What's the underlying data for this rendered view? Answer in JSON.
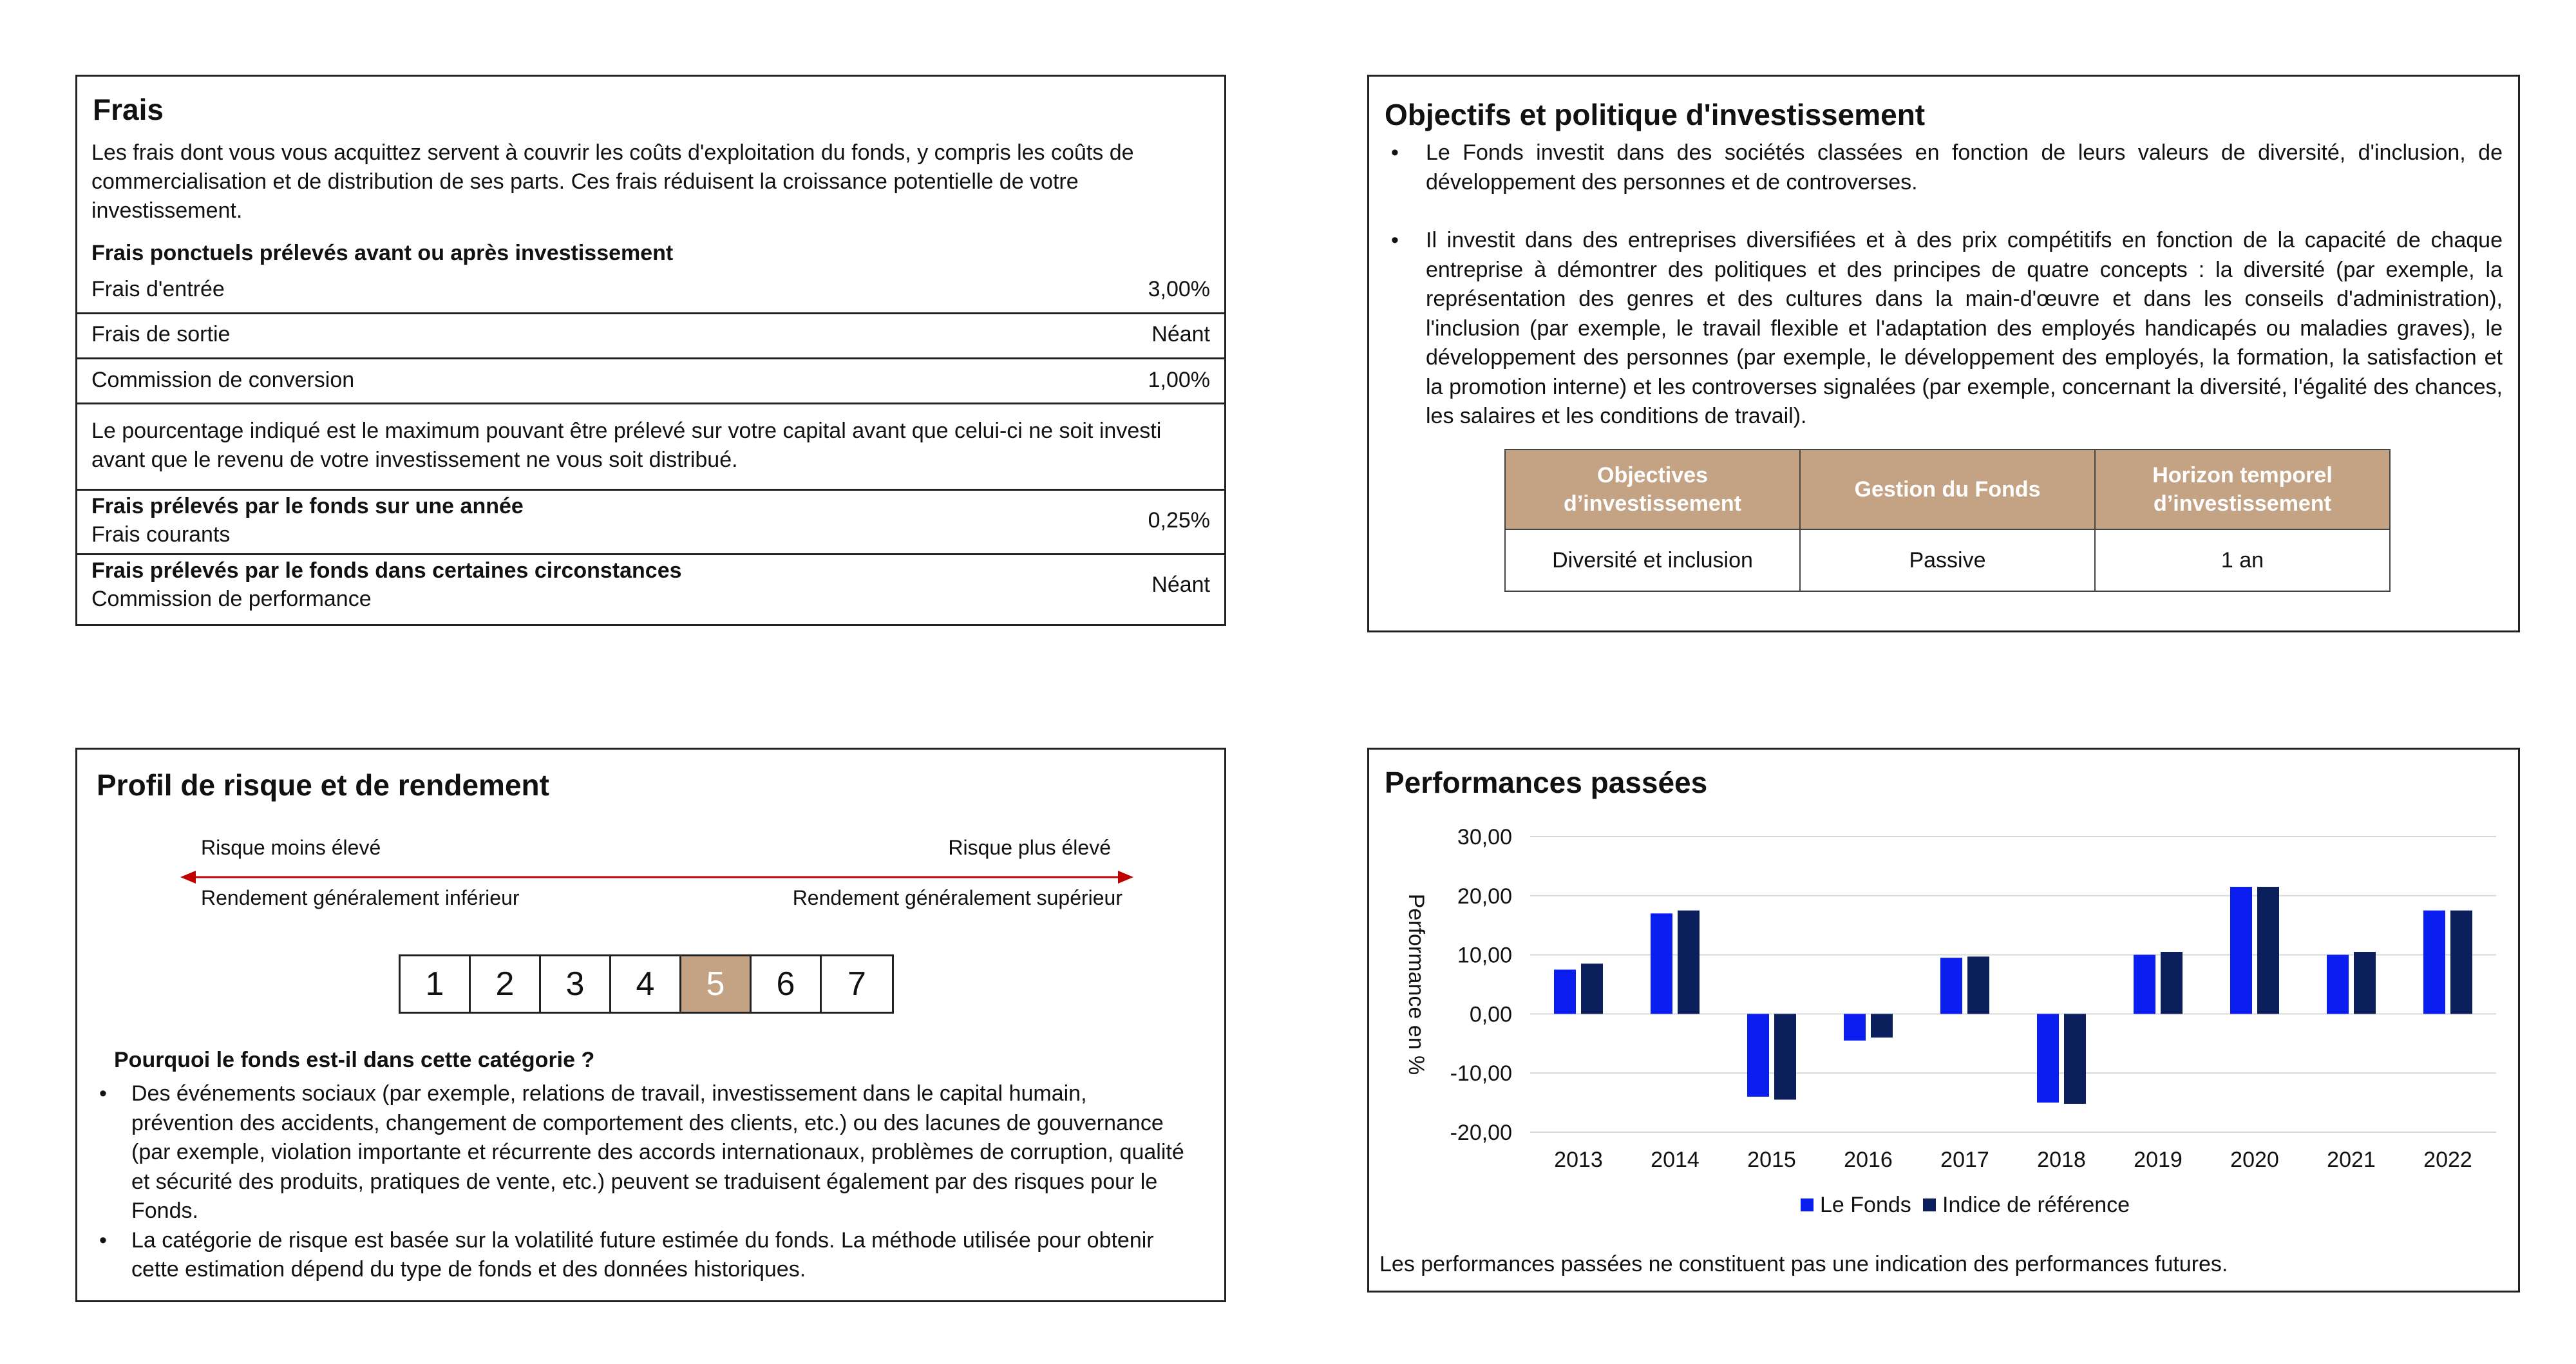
{
  "frais": {
    "title": "Frais",
    "intro": "Les frais dont vous vous acquittez servent à couvrir les coûts d'exploitation du fonds, y compris les coûts de commercialisation et de distribution de ses parts. Ces frais réduisent la croissance potentielle de votre investissement.",
    "ponctuels_heading": "Frais ponctuels prélevés avant ou après investissement",
    "rows": [
      {
        "label": "Frais d'entrée",
        "value": "3,00%"
      },
      {
        "label": "Frais de sortie",
        "value": "Néant"
      },
      {
        "label": "Commission de conversion",
        "value": "1,00%"
      }
    ],
    "note": "Le pourcentage indiqué est le maximum pouvant être prélevé sur votre capital avant que celui-ci ne soit investi avant que le revenu de votre investissement ne vous soit distribué.",
    "annuel_heading": "Frais prélevés par le fonds sur une année",
    "annuel_label": "Frais courants",
    "annuel_value": "0,25%",
    "circonstances_heading": "Frais prélevés par le fonds dans certaines circonstances",
    "circonstances_label": "Commission de performance",
    "circonstances_value": "Néant"
  },
  "objectifs": {
    "title": "Objectifs et politique d'investissement",
    "bullet1": "Le Fonds investit dans des sociétés classées en fonction de leurs valeurs de diversité, d'inclusion, de développement des personnes et de controverses.",
    "bullet2": "Il investit dans des entreprises diversifiées et à des prix compétitifs en fonction de la capacité de chaque entreprise à démontrer des politiques et des principes de quatre concepts : la diversité (par exemple, la représentation des genres et des cultures dans la main-d'œuvre et dans les conseils d'administration), l'inclusion (par exemple, le travail flexible et l'adaptation des employés handicapés ou maladies graves), le développement des personnes (par exemple, le développement des employés, la formation, la satisfaction et la promotion interne) et les controverses signalées (par exemple, concernant la diversité, l'égalité des chances, les salaires et les conditions de travail).",
    "bullet_symbol": "•",
    "table": {
      "headers": [
        "Objectives d’investissement",
        "Gestion du Fonds",
        "Horizon temporel d’investissement"
      ],
      "row": [
        "Diversité et inclusion",
        "Passive",
        "1 an"
      ]
    },
    "header_color": "#c4a384"
  },
  "risque": {
    "title": "Profil de risque et de rendement",
    "low_risk": "Risque moins élevé",
    "high_risk": "Risque plus élevé",
    "low_return": "Rendement généralement inférieur",
    "high_return": "Rendement généralement supérieur",
    "arrow_color": "#c00000",
    "scale": [
      "1",
      "2",
      "3",
      "4",
      "5",
      "6",
      "7"
    ],
    "selected": "5",
    "why_heading": "Pourquoi le fonds est-il dans cette catégorie ?",
    "bullet1": "Des événements sociaux (par exemple, relations de travail, investissement dans le capital humain, prévention des accidents, changement de comportement des clients, etc.) ou des lacunes de gouvernance (par exemple, violation importante et récurrente des accords internationaux, problèmes de corruption, qualité et sécurité des produits, pratiques de vente, etc.) peuvent se traduisent également par des risques pour le Fonds.",
    "bullet2": "La catégorie de risque est basée sur la volatilité future estimée du fonds. La méthode utilisée pour obtenir cette estimation dépend du type de fonds et des données historiques.",
    "bullet_symbol": "•"
  },
  "performances": {
    "title": "Performances passées",
    "footnote": "Les performances passées ne constituent pas une indication des performances futures."
  },
  "chart_data": {
    "type": "bar",
    "title": "",
    "xlabel": "",
    "ylabel": "Performance en %",
    "categories": [
      "2013",
      "2014",
      "2015",
      "2016",
      "2017",
      "2018",
      "2019",
      "2020",
      "2021",
      "2022"
    ],
    "series": [
      {
        "name": "Le Fonds",
        "color": "#0a1ef0",
        "values": [
          7.5,
          17.0,
          -14.0,
          -4.5,
          9.5,
          -15.0,
          10.0,
          21.5,
          10.0,
          17.5
        ]
      },
      {
        "name": "Indice de référence",
        "color": "#0b1f5c",
        "values": [
          8.5,
          17.5,
          -14.5,
          -4.0,
          9.7,
          -15.2,
          10.5,
          21.5,
          10.5,
          17.5
        ]
      }
    ],
    "ylim": [
      -20,
      30
    ],
    "yticks": [
      "-20,00",
      "-10,00",
      "0,00",
      "10,00",
      "20,00",
      "30,00"
    ],
    "grid": true,
    "legend_position": "bottom"
  }
}
